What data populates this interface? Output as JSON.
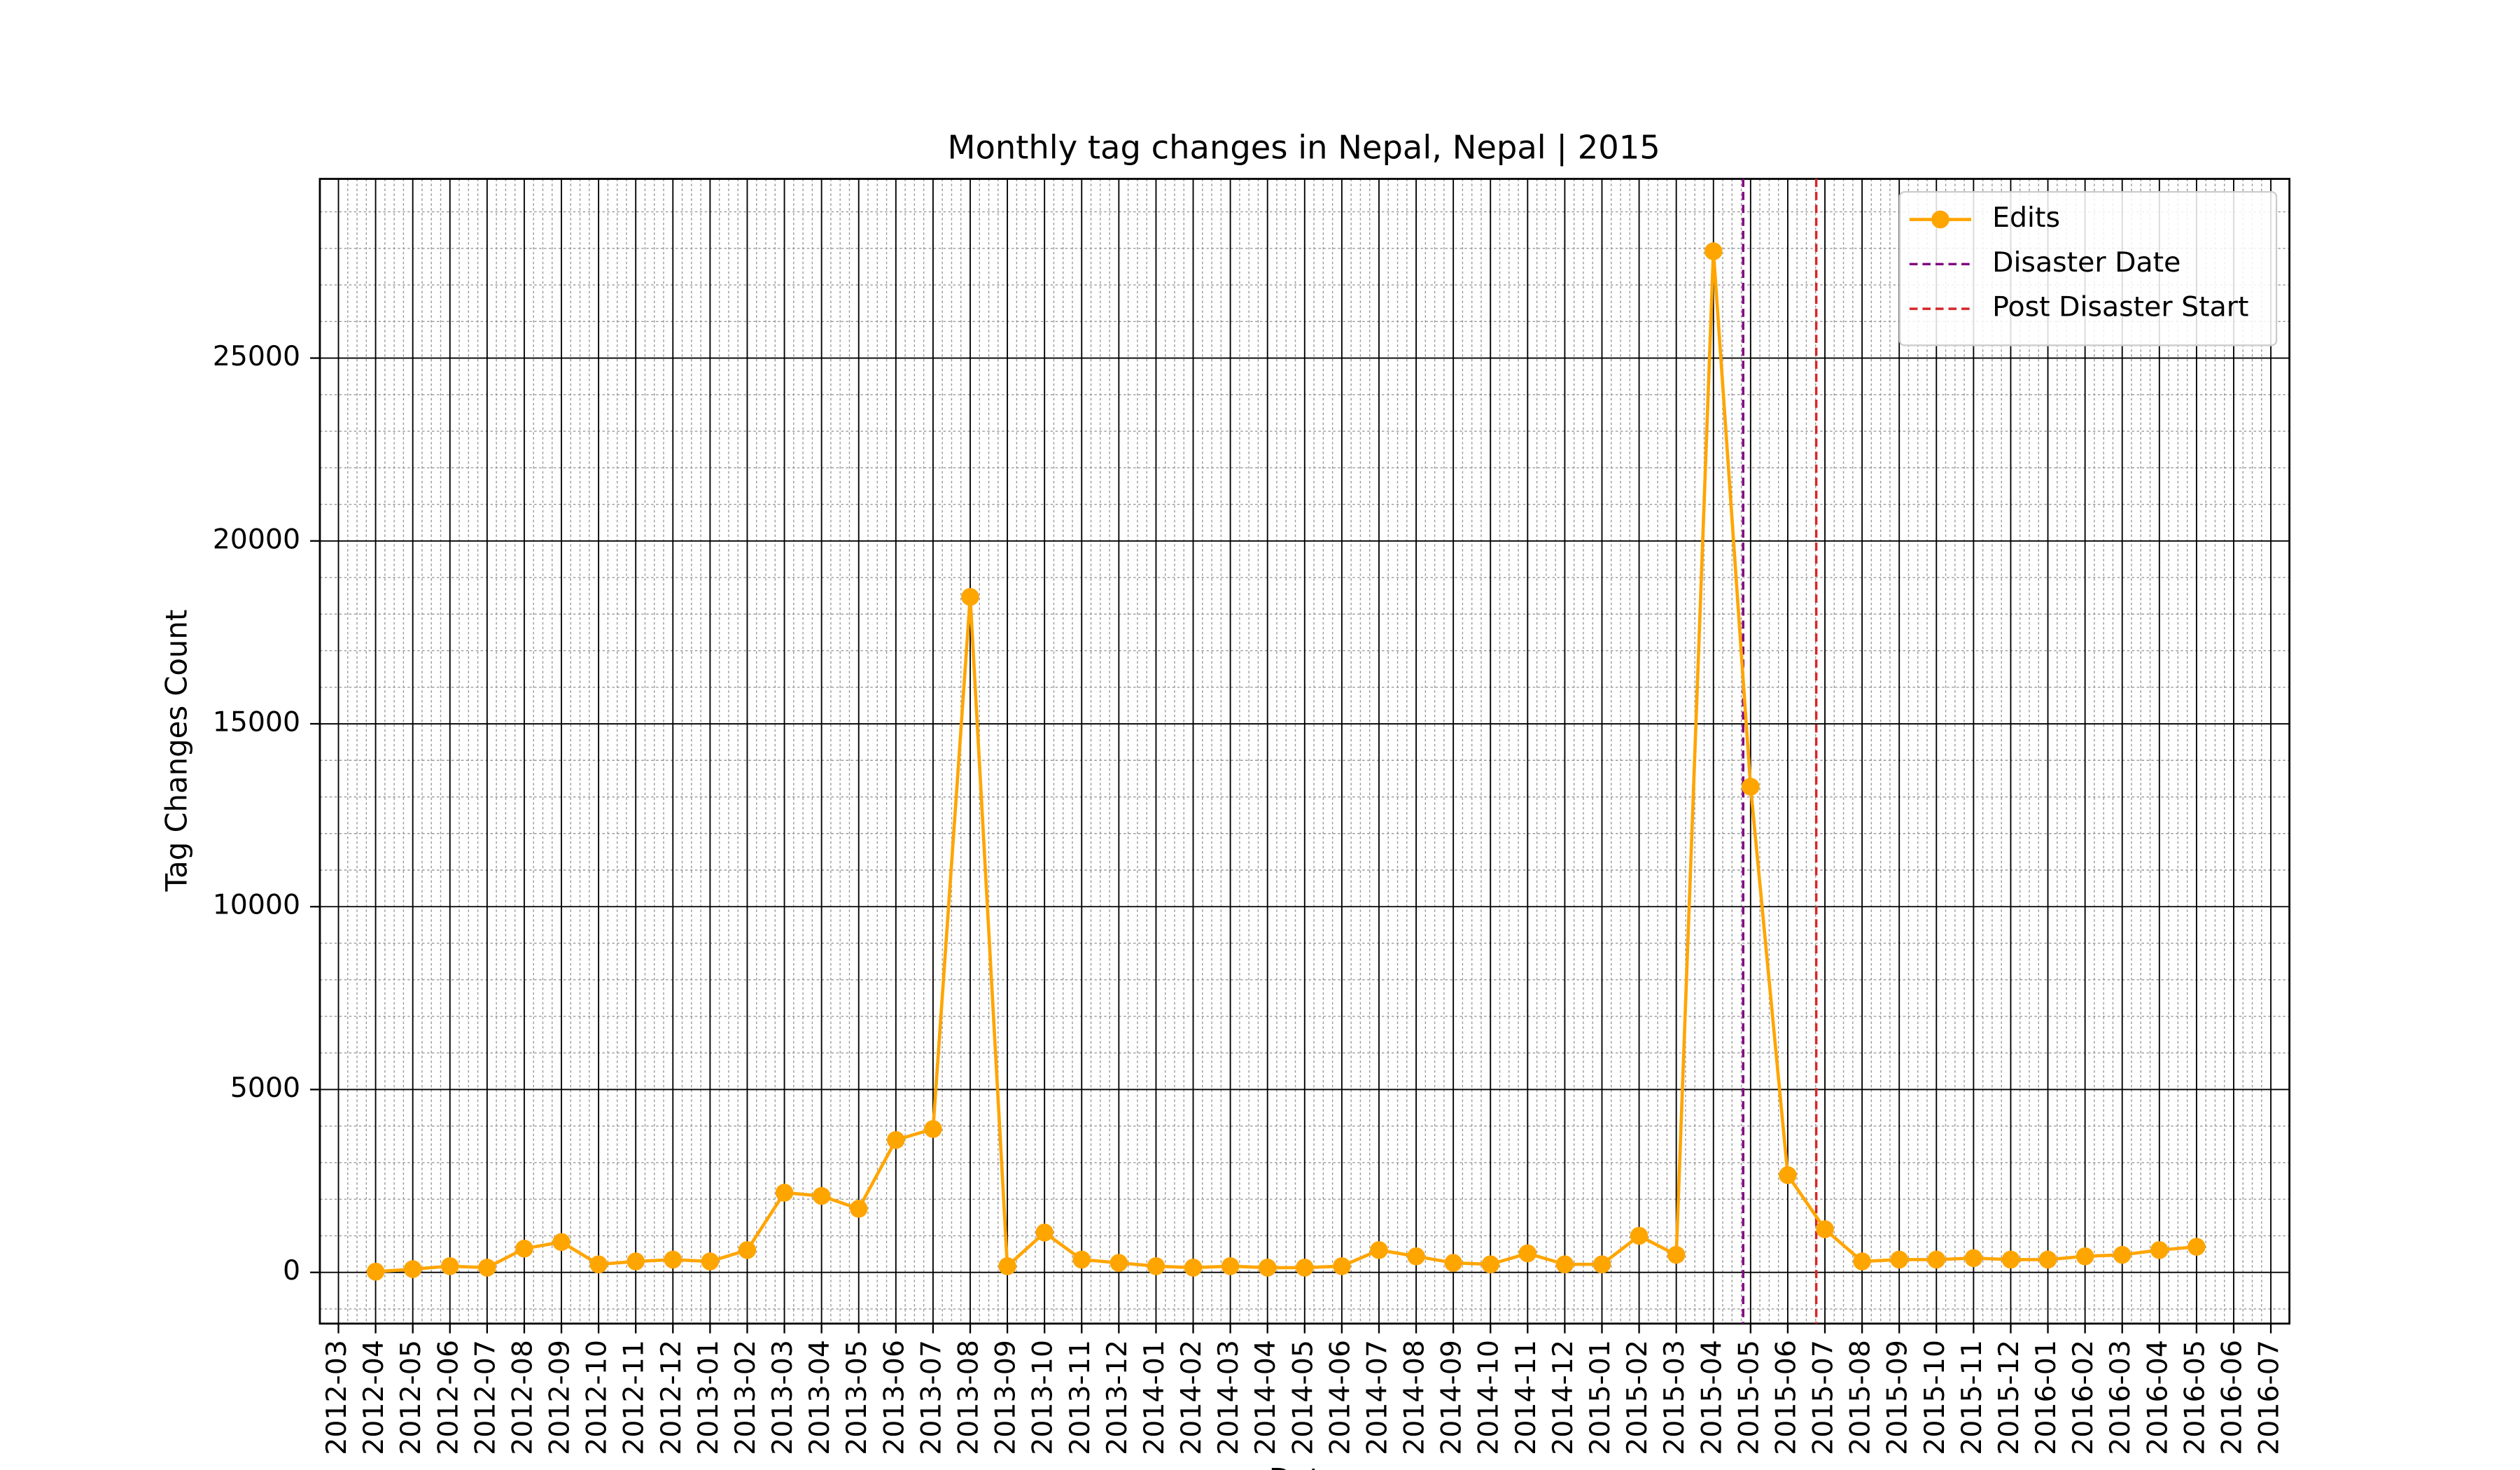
{
  "chart_data": {
    "type": "line",
    "title": "Monthly tag changes in Nepal, Nepal | 2015",
    "x_label": "Date",
    "y_label": "Tag Changes Count",
    "x": [
      "2012-04",
      "2012-05",
      "2012-06",
      "2012-07",
      "2012-08",
      "2012-09",
      "2012-10",
      "2012-11",
      "2012-12",
      "2013-01",
      "2013-02",
      "2013-03",
      "2013-04",
      "2013-05",
      "2013-06",
      "2013-07",
      "2013-08",
      "2013-09",
      "2013-10",
      "2013-11",
      "2013-12",
      "2014-01",
      "2014-02",
      "2014-03",
      "2014-04",
      "2014-05",
      "2014-06",
      "2014-07",
      "2014-08",
      "2014-09",
      "2014-10",
      "2014-11",
      "2014-12",
      "2015-01",
      "2015-02",
      "2015-03",
      "2015-04",
      "2015-05",
      "2015-06",
      "2015-07",
      "2015-08",
      "2015-09",
      "2015-10",
      "2015-11",
      "2015-12",
      "2016-01",
      "2016-02",
      "2016-03",
      "2016-04",
      "2016-05"
    ],
    "series": [
      {
        "name": "Edits",
        "color": "#ffa500",
        "values": [
          20,
          90,
          170,
          130,
          650,
          830,
          220,
          300,
          350,
          300,
          610,
          2180,
          2090,
          1740,
          3620,
          3920,
          18470,
          170,
          1090,
          350,
          260,
          170,
          130,
          170,
          130,
          130,
          170,
          610,
          440,
          260,
          220,
          520,
          220,
          220,
          1000,
          480,
          27920,
          13280,
          2660,
          1180,
          300,
          350,
          350,
          390,
          350,
          350,
          440,
          480,
          610,
          700
        ]
      }
    ],
    "vlines": [
      {
        "name": "Disaster Date",
        "color": "#800080",
        "x": "2015-04-25"
      },
      {
        "name": "Post Disaster Start",
        "color": "#d62728",
        "x": "2015-06-24"
      }
    ],
    "xlim": [
      "2012-02-16",
      "2016-07-16"
    ],
    "xticks": [
      "2012-03",
      "2012-04",
      "2012-05",
      "2012-06",
      "2012-07",
      "2012-08",
      "2012-09",
      "2012-10",
      "2012-11",
      "2012-12",
      "2013-01",
      "2013-02",
      "2013-03",
      "2013-04",
      "2013-05",
      "2013-06",
      "2013-07",
      "2013-08",
      "2013-09",
      "2013-10",
      "2013-11",
      "2013-12",
      "2014-01",
      "2014-02",
      "2014-03",
      "2014-04",
      "2014-05",
      "2014-06",
      "2014-07",
      "2014-08",
      "2014-09",
      "2014-10",
      "2014-11",
      "2014-12",
      "2015-01",
      "2015-02",
      "2015-03",
      "2015-04",
      "2015-05",
      "2015-06",
      "2015-07",
      "2015-08",
      "2015-09",
      "2015-10",
      "2015-11",
      "2015-12",
      "2016-01",
      "2016-02",
      "2016-03",
      "2016-04",
      "2016-05",
      "2016-06",
      "2016-07"
    ],
    "ylim": [
      -1400,
      29900
    ],
    "yticks": [
      0,
      5000,
      10000,
      15000,
      20000,
      25000
    ],
    "grid": true,
    "minor_grid": true,
    "legend": "upper right"
  }
}
